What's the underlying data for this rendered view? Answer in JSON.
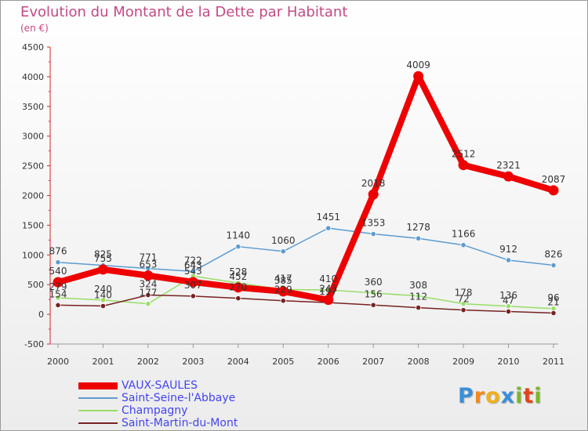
{
  "title": "Evolution du Montant de la Dette par Habitant",
  "subtitle": "(en €)",
  "logo": {
    "letters": [
      "P",
      "r",
      "o",
      "x",
      "i",
      "t",
      "i"
    ],
    "colors": [
      "#3b8fd8",
      "#f08a1c",
      "#f0b01c",
      "#3b8fd8",
      "#7ab828",
      "#e0461c",
      "#7ab828"
    ]
  },
  "chart_data": {
    "type": "line",
    "title": "Evolution du Montant de la Dette par Habitant",
    "subtitle": "(en €)",
    "xlabel": "",
    "ylabel": "",
    "categories": [
      "2000",
      "2001",
      "2002",
      "2003",
      "2004",
      "2005",
      "2006",
      "2007",
      "2008",
      "2009",
      "2010",
      "2011"
    ],
    "ylim": [
      -500,
      4500
    ],
    "yticks": [
      "-500",
      "0",
      "500",
      "1000",
      "1500",
      "2000",
      "2500",
      "3000",
      "3500",
      "4000",
      "4500"
    ],
    "grid": false,
    "legend_position": "bottom-left",
    "series": [
      {
        "name": "VAUX-SAULES",
        "color": "#ee0000",
        "values": [
          540,
          755,
          653,
          543,
          452,
          385,
          243,
          2018,
          4009,
          2512,
          2321,
          2087
        ],
        "labels": [
          "540",
          "755",
          "653",
          "543",
          "452",
          "385",
          "243",
          "2018",
          "4009",
          "2512",
          "2321",
          "2087"
        ]
      },
      {
        "name": "Saint-Seine-l'Abbaye",
        "color": "#5d9cd0",
        "values": [
          876,
          825,
          771,
          722,
          1140,
          1060,
          1451,
          1353,
          1278,
          1166,
          912,
          826
        ],
        "labels": [
          "876",
          "825",
          "771",
          "722",
          "1140",
          "1060",
          "1451",
          "1353",
          "1278",
          "1166",
          "912",
          "826"
        ]
      },
      {
        "name": "Champagny",
        "color": "#99dd66",
        "values": [
          279,
          240,
          177,
          643,
          528,
          417,
          410,
          360,
          308,
          178,
          136,
          96
        ],
        "labels": [
          "279",
          "240",
          "177",
          "643",
          "528",
          "417",
          "410",
          "360",
          "308",
          "178",
          "136",
          "96"
        ]
      },
      {
        "name": "Saint-Martin-du-Mont",
        "color": "#772222",
        "values": [
          154,
          140,
          324,
          307,
          270,
          229,
          197,
          156,
          112,
          72,
          47,
          21
        ],
        "labels": [
          "154",
          "140",
          "324",
          "307",
          "270",
          "229",
          "197",
          "156",
          "112",
          "72",
          "47",
          "21"
        ]
      }
    ]
  }
}
